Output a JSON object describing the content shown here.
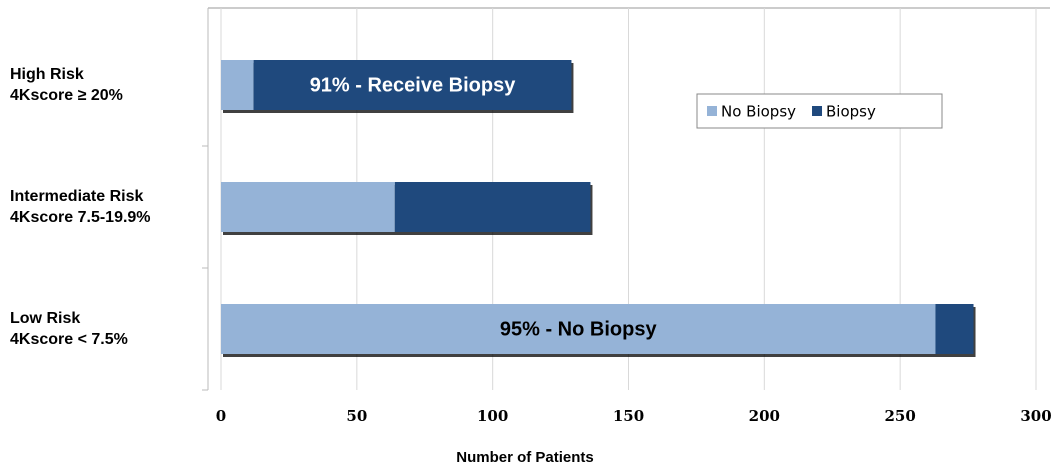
{
  "chart_data": {
    "type": "stacked-barh",
    "categories": [
      [
        "High Risk",
        "4Kscore ≥ 20%"
      ],
      [
        "Intermediate Risk",
        "4Kscore 7.5-19.9%"
      ],
      [
        "Low Risk",
        "4Kscore < 7.5%"
      ]
    ],
    "series": [
      {
        "name": "No Biopsy",
        "color": "#95b3d7",
        "values": [
          12,
          64,
          263
        ]
      },
      {
        "name": "Biopsy",
        "color": "#1f497d",
        "values": [
          117,
          72,
          14
        ]
      }
    ],
    "annotations": [
      "91% - Receive Biopsy",
      null,
      "95% - No Biopsy"
    ],
    "x_label": "Number of Patients",
    "xlim": [
      0,
      300
    ],
    "xticks": [
      0,
      50,
      100,
      150,
      200,
      250,
      300
    ],
    "grid": true,
    "legend": "upper right"
  }
}
